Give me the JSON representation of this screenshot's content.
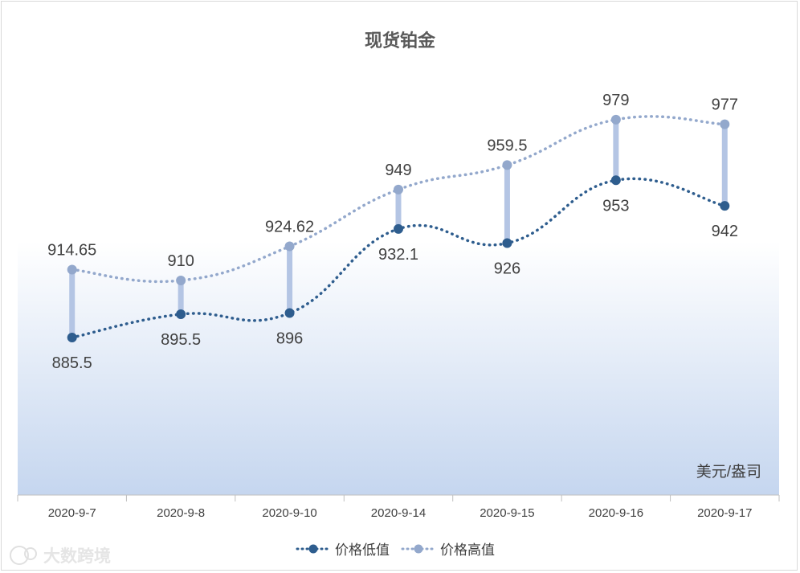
{
  "chart_data": {
    "type": "line",
    "title": "现货铂金",
    "unit_label": "美元/盎司",
    "categories": [
      "2020-9-7",
      "2020-9-8",
      "2020-9-10",
      "2020-9-14",
      "2020-9-15",
      "2020-9-16",
      "2020-9-17"
    ],
    "series": [
      {
        "name": "价格低值",
        "values": [
          885.5,
          895.5,
          896,
          932.1,
          926,
          953,
          942
        ],
        "labels": [
          "885.5",
          "895.5",
          "896",
          "932.1",
          "926",
          "953",
          "942"
        ],
        "label_position": "below",
        "color": "#2e5d8e"
      },
      {
        "name": "价格高值",
        "values": [
          914.65,
          910,
          924.62,
          949,
          959.5,
          979,
          977
        ],
        "labels": [
          "914.65",
          "910",
          "924.62",
          "949",
          "959.5",
          "979",
          "977"
        ],
        "label_position": "above",
        "color": "#93a8cc"
      }
    ],
    "high_low_lines": true,
    "line_style": "dotted-smooth",
    "grid": false,
    "legend_position": "bottom",
    "colors": {
      "bar": "#b4c5e4",
      "gradient_top": "#ffffff",
      "gradient_bottom": "#c5d6ef",
      "text": "#404040",
      "title": "#595959",
      "axis": "#bfbfbf"
    }
  },
  "watermark": "大数跨境"
}
